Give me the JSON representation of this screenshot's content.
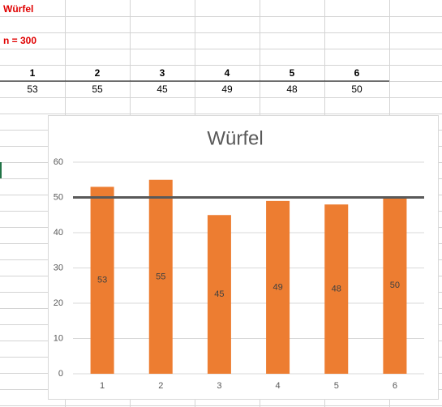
{
  "sheet": {
    "title": "Würfel",
    "n_label": "n = 300",
    "table": {
      "header": [
        1,
        2,
        3,
        4,
        5,
        6
      ],
      "rows": [
        [
          53,
          55,
          45,
          49,
          48,
          50
        ]
      ]
    }
  },
  "chart_data": {
    "type": "bar",
    "title": "Würfel",
    "categories": [
      "1",
      "2",
      "3",
      "4",
      "5",
      "6"
    ],
    "values": [
      53,
      55,
      45,
      49,
      48,
      50
    ],
    "color": "#ed7d31",
    "ylim": [
      0,
      60
    ],
    "yticks": [
      0,
      10,
      20,
      30,
      40,
      50,
      60
    ],
    "grid": true,
    "reference_line": {
      "value": 50,
      "color": "#595959"
    }
  }
}
